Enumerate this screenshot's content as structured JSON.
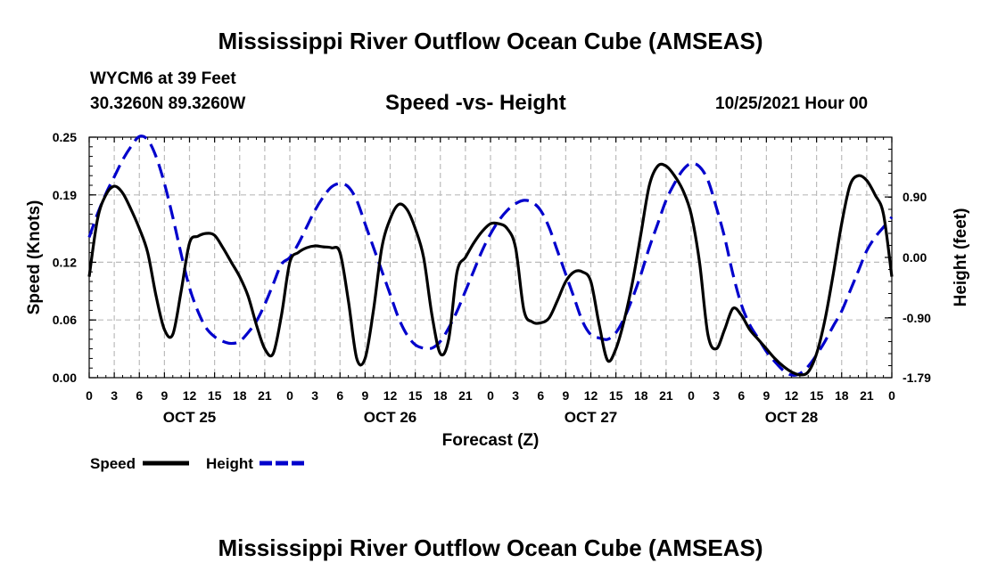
{
  "header": {
    "title": "Mississippi River Outflow Ocean Cube (AMSEAS)",
    "station": "WYCM6 at 39 Feet",
    "coords": "30.3260N  89.3260W",
    "subtitle": "Speed -vs- Height",
    "datetime": "10/25/2021 Hour 00"
  },
  "footer": {
    "title": "Mississippi River Outflow Ocean Cube (AMSEAS)"
  },
  "chart_data": {
    "type": "line",
    "title": "Speed -vs- Height",
    "xlabel": "Forecast (Z)",
    "ylabel": "Speed (Knots)",
    "y2label": "Height (feet)",
    "xlim": [
      0,
      96
    ],
    "ylim": [
      0,
      0.25
    ],
    "y2lim": [
      -1.79,
      1.79
    ],
    "x_tick_values": [
      0,
      3,
      6,
      9,
      12,
      15,
      18,
      21,
      24,
      27,
      30,
      33,
      36,
      39,
      42,
      45,
      48,
      51,
      54,
      57,
      60,
      63,
      66,
      69,
      72,
      75,
      78,
      81,
      84,
      87,
      90,
      93,
      96
    ],
    "x_tick_labels": [
      "0",
      "3",
      "6",
      "9",
      "12",
      "15",
      "18",
      "21",
      "0",
      "3",
      "6",
      "9",
      "12",
      "15",
      "18",
      "21",
      "0",
      "3",
      "6",
      "9",
      "12",
      "15",
      "18",
      "21",
      "0",
      "3",
      "6",
      "9",
      "12",
      "15",
      "18",
      "21",
      "0"
    ],
    "day_labels": [
      {
        "label": "OCT 25",
        "x": 12
      },
      {
        "label": "OCT 26",
        "x": 36
      },
      {
        "label": "OCT 27",
        "x": 60
      },
      {
        "label": "OCT 28",
        "x": 84
      }
    ],
    "y_ticks": [
      0.0,
      0.06,
      0.12,
      0.19,
      0.25
    ],
    "y_tick_labels": [
      "0.00",
      "0.06",
      "0.12",
      "0.19",
      "0.25"
    ],
    "y2_ticks": [
      -1.79,
      -0.9,
      0.0,
      0.9
    ],
    "y2_tick_labels": [
      "-1.79",
      "-0.90",
      "0.00",
      "0.90"
    ],
    "legend": [
      {
        "label": "Speed",
        "color": "#000000",
        "dash": "solid"
      },
      {
        "label": "Height",
        "color": "#0000cc",
        "dash": "dashed"
      }
    ],
    "series": [
      {
        "name": "Speed",
        "axis": "left",
        "color": "#000000",
        "x": [
          0,
          1,
          2,
          3,
          4,
          5,
          6,
          7,
          8,
          9,
          10,
          11,
          12,
          13,
          14,
          15,
          16,
          17,
          18,
          19,
          20,
          21,
          22,
          23,
          24,
          25,
          26,
          27,
          28,
          29,
          30,
          31,
          32,
          33,
          34,
          35,
          36,
          37,
          38,
          39,
          40,
          41,
          42,
          43,
          44,
          45,
          46,
          47,
          48,
          49,
          50,
          51,
          52,
          53,
          54,
          55,
          56,
          57,
          58,
          59,
          60,
          61,
          62,
          63,
          64,
          65,
          66,
          67,
          68,
          69,
          70,
          71,
          72,
          73,
          74,
          75,
          76,
          77,
          78,
          79,
          80,
          81,
          82,
          83,
          84,
          85,
          86,
          87,
          88,
          89,
          90,
          91,
          92,
          93,
          94,
          95,
          96
        ],
        "values": [
          0.105,
          0.165,
          0.19,
          0.199,
          0.192,
          0.175,
          0.155,
          0.13,
          0.085,
          0.05,
          0.045,
          0.09,
          0.14,
          0.147,
          0.15,
          0.148,
          0.135,
          0.12,
          0.105,
          0.085,
          0.055,
          0.03,
          0.025,
          0.065,
          0.12,
          0.13,
          0.135,
          0.137,
          0.136,
          0.135,
          0.13,
          0.08,
          0.02,
          0.02,
          0.07,
          0.135,
          0.165,
          0.18,
          0.175,
          0.155,
          0.125,
          0.065,
          0.025,
          0.04,
          0.11,
          0.125,
          0.14,
          0.152,
          0.16,
          0.16,
          0.155,
          0.135,
          0.07,
          0.058,
          0.057,
          0.062,
          0.08,
          0.1,
          0.11,
          0.11,
          0.1,
          0.055,
          0.018,
          0.03,
          0.06,
          0.1,
          0.15,
          0.2,
          0.22,
          0.22,
          0.21,
          0.195,
          0.17,
          0.12,
          0.045,
          0.03,
          0.05,
          0.072,
          0.065,
          0.05,
          0.04,
          0.03,
          0.02,
          0.012,
          0.006,
          0.003,
          0.006,
          0.025,
          0.06,
          0.108,
          0.16,
          0.2,
          0.21,
          0.205,
          0.19,
          0.17,
          0.105
        ]
      },
      {
        "name": "Height",
        "axis": "right",
        "color": "#0000cc",
        "x": [
          0,
          1,
          2,
          3,
          4,
          5,
          6,
          7,
          8,
          9,
          10,
          11,
          12,
          13,
          14,
          15,
          16,
          17,
          18,
          19,
          20,
          21,
          22,
          23,
          24,
          25,
          26,
          27,
          28,
          29,
          30,
          31,
          32,
          33,
          34,
          35,
          36,
          37,
          38,
          39,
          40,
          41,
          42,
          43,
          44,
          45,
          46,
          47,
          48,
          49,
          50,
          51,
          52,
          53,
          54,
          55,
          56,
          57,
          58,
          59,
          60,
          61,
          62,
          63,
          64,
          65,
          66,
          67,
          68,
          69,
          70,
          71,
          72,
          73,
          74,
          75,
          76,
          77,
          78,
          79,
          80,
          81,
          82,
          83,
          84,
          85,
          86,
          87,
          88,
          89,
          90,
          91,
          92,
          93,
          94,
          95,
          96
        ],
        "values": [
          0.3,
          0.65,
          0.95,
          1.2,
          1.45,
          1.65,
          1.8,
          1.75,
          1.5,
          1.1,
          0.6,
          0.05,
          -0.45,
          -0.8,
          -1.05,
          -1.18,
          -1.25,
          -1.28,
          -1.25,
          -1.12,
          -0.95,
          -0.7,
          -0.4,
          -0.1,
          0.0,
          0.2,
          0.45,
          0.7,
          0.9,
          1.05,
          1.1,
          1.05,
          0.85,
          0.5,
          0.15,
          -0.2,
          -0.55,
          -0.9,
          -1.15,
          -1.3,
          -1.35,
          -1.35,
          -1.25,
          -1.05,
          -0.8,
          -0.5,
          -0.2,
          0.1,
          0.35,
          0.55,
          0.7,
          0.8,
          0.85,
          0.82,
          0.7,
          0.45,
          0.1,
          -0.25,
          -0.6,
          -0.95,
          -1.15,
          -1.2,
          -1.22,
          -1.12,
          -0.9,
          -0.6,
          -0.25,
          0.15,
          0.5,
          0.85,
          1.1,
          1.3,
          1.4,
          1.35,
          1.15,
          0.75,
          0.3,
          -0.25,
          -0.7,
          -1.0,
          -1.2,
          -1.4,
          -1.55,
          -1.68,
          -1.75,
          -1.73,
          -1.62,
          -1.45,
          -1.25,
          -1.02,
          -0.8,
          -0.5,
          -0.2,
          0.1,
          0.3,
          0.45,
          0.6
        ]
      }
    ]
  }
}
